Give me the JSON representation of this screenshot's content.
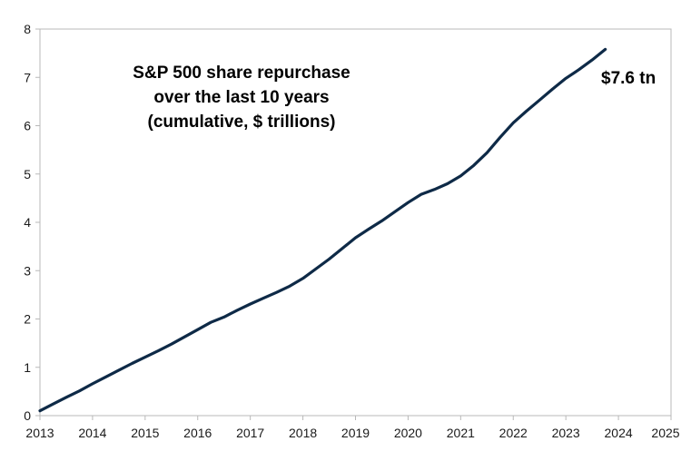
{
  "chart_data": {
    "type": "line",
    "title_lines": [
      "S&P 500 share repurchase",
      "over the last 10 years",
      "(cumulative, $ trillions)"
    ],
    "xlabel": "",
    "ylabel": "",
    "xlim": [
      2013,
      2025
    ],
    "ylim": [
      0,
      8
    ],
    "x_ticks": [
      "2013",
      "2014",
      "2015",
      "2016",
      "2017",
      "2018",
      "2019",
      "2020",
      "2021",
      "2022",
      "2023",
      "2024",
      "2025"
    ],
    "y_ticks": [
      "0",
      "1",
      "2",
      "3",
      "4",
      "5",
      "6",
      "7",
      "8"
    ],
    "grid": false,
    "line_color": "#0e2a47",
    "series": [
      {
        "x": [
          2013.0,
          2013.25,
          2013.5,
          2013.75,
          2014.0,
          2014.25,
          2014.5,
          2014.75,
          2015.0,
          2015.25,
          2015.5,
          2015.75,
          2016.0,
          2016.25,
          2016.5,
          2016.75,
          2017.0,
          2017.25,
          2017.5,
          2017.75,
          2018.0,
          2018.25,
          2018.5,
          2018.75,
          2019.0,
          2019.25,
          2019.5,
          2019.75,
          2020.0,
          2020.25,
          2020.5,
          2020.75,
          2021.0,
          2021.25,
          2021.5,
          2021.75,
          2022.0,
          2022.25,
          2022.5,
          2022.75,
          2023.0,
          2023.25,
          2023.5,
          2023.75
        ],
        "y": [
          0.1,
          0.24,
          0.38,
          0.51,
          0.66,
          0.8,
          0.94,
          1.08,
          1.21,
          1.34,
          1.48,
          1.63,
          1.78,
          1.93,
          2.04,
          2.18,
          2.31,
          2.43,
          2.55,
          2.68,
          2.84,
          3.04,
          3.24,
          3.46,
          3.68,
          3.86,
          4.03,
          4.22,
          4.41,
          4.58,
          4.68,
          4.8,
          4.96,
          5.18,
          5.44,
          5.76,
          6.06,
          6.3,
          6.53,
          6.76,
          6.98,
          7.16,
          7.36,
          7.58
        ]
      }
    ],
    "annotations": [
      {
        "text": "$7.6 tn"
      }
    ]
  }
}
